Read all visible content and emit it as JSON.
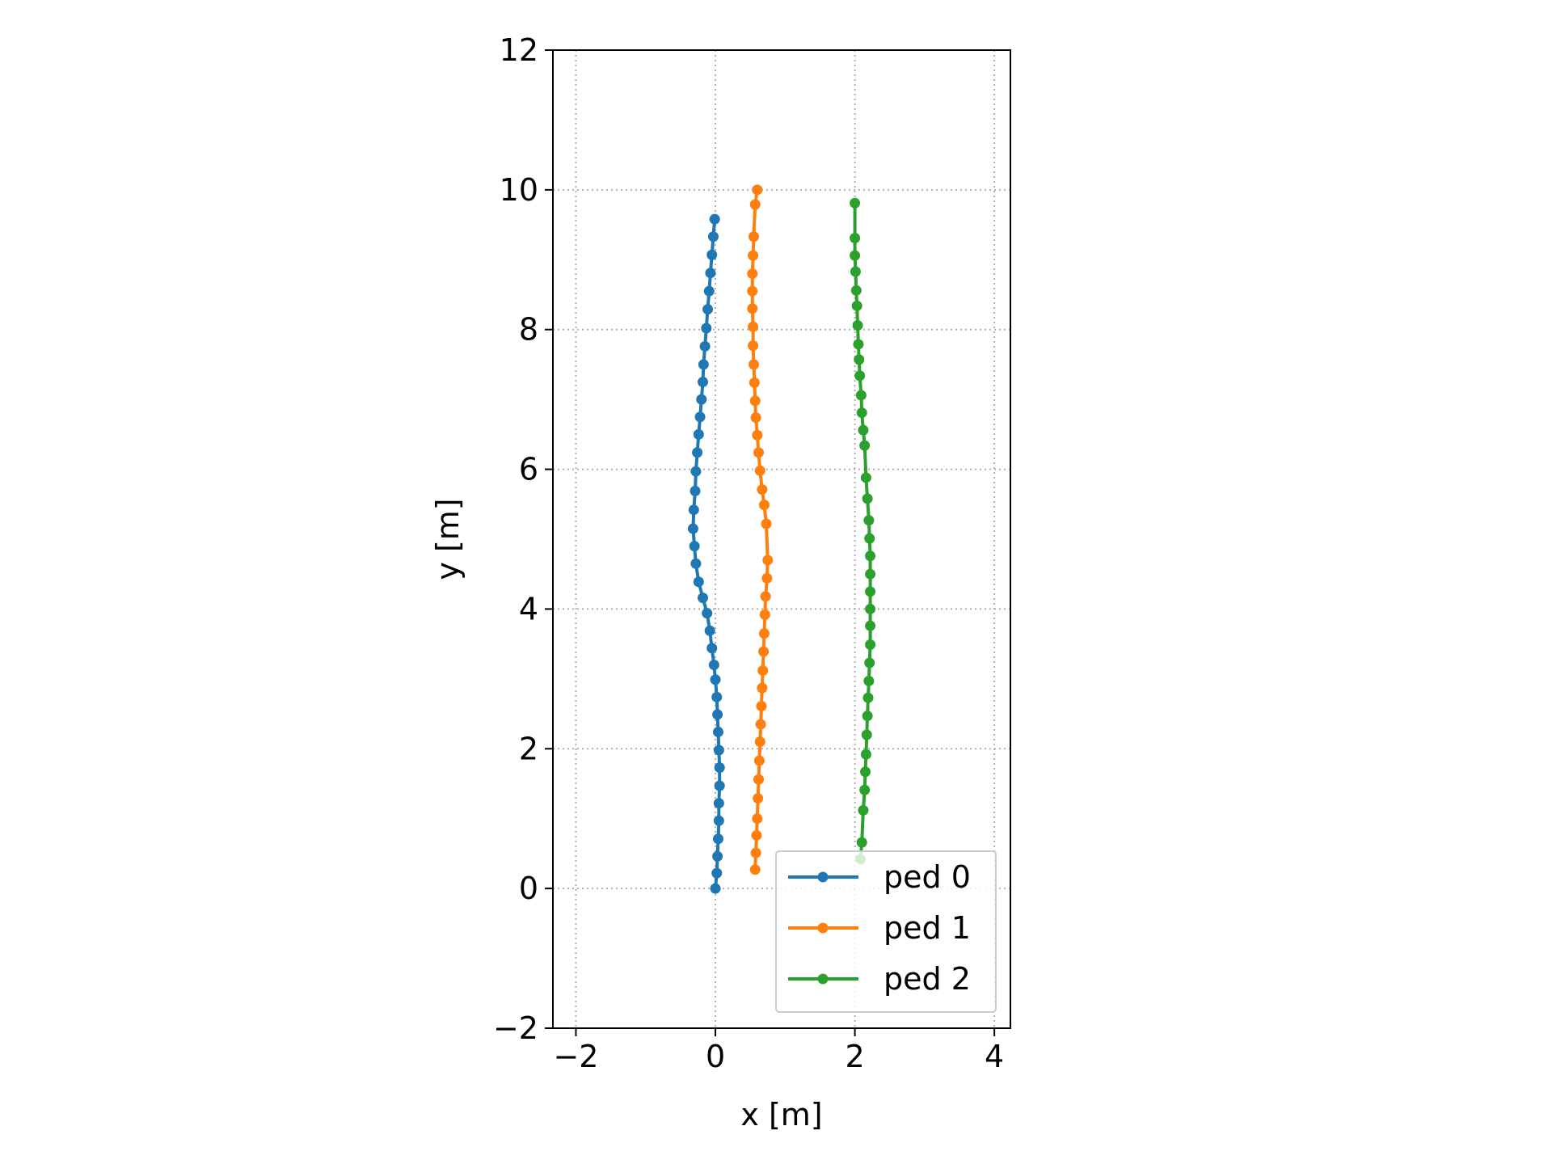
{
  "chart_data": {
    "type": "line",
    "xlabel": "x [m]",
    "ylabel": "y [m]",
    "xlim": [
      -2.33,
      4.23
    ],
    "ylim": [
      -2,
      12
    ],
    "xticks": [
      -2,
      0,
      2,
      4
    ],
    "yticks": [
      -2,
      0,
      2,
      4,
      6,
      8,
      10,
      12
    ],
    "x_tick_labels": [
      "−2",
      "0",
      "2",
      "4"
    ],
    "y_tick_labels": [
      "−2",
      "0",
      "2",
      "4",
      "6",
      "8",
      "10",
      "12"
    ],
    "grid": true,
    "legend_position": "lower-right",
    "series": [
      {
        "name": "ped 0",
        "color": "#1f77b4",
        "x": [
          0.0,
          0.02,
          0.03,
          0.04,
          0.05,
          0.05,
          0.06,
          0.06,
          0.05,
          0.04,
          0.03,
          0.02,
          0.0,
          -0.02,
          -0.05,
          -0.08,
          -0.12,
          -0.18,
          -0.24,
          -0.28,
          -0.3,
          -0.32,
          -0.31,
          -0.29,
          -0.28,
          -0.26,
          -0.24,
          -0.22,
          -0.2,
          -0.18,
          -0.17,
          -0.15,
          -0.13,
          -0.11,
          -0.09,
          -0.07,
          -0.05,
          -0.03,
          -0.01
        ],
        "y": [
          0.0,
          0.22,
          0.46,
          0.71,
          0.97,
          1.22,
          1.47,
          1.73,
          1.98,
          2.24,
          2.49,
          2.74,
          2.99,
          3.2,
          3.44,
          3.69,
          3.94,
          4.16,
          4.39,
          4.65,
          4.9,
          5.15,
          5.42,
          5.69,
          5.97,
          6.24,
          6.5,
          6.75,
          7.0,
          7.25,
          7.5,
          7.76,
          8.02,
          8.29,
          8.55,
          8.81,
          9.07,
          9.33,
          9.58
        ]
      },
      {
        "name": "ped 1",
        "color": "#ff7f0e",
        "x": [
          0.57,
          0.58,
          0.59,
          0.6,
          0.61,
          0.62,
          0.63,
          0.64,
          0.65,
          0.66,
          0.67,
          0.68,
          0.69,
          0.7,
          0.71,
          0.72,
          0.74,
          0.75,
          0.73,
          0.7,
          0.67,
          0.64,
          0.62,
          0.6,
          0.58,
          0.57,
          0.56,
          0.55,
          0.54,
          0.54,
          0.53,
          0.53,
          0.53,
          0.54,
          0.55,
          0.57,
          0.6
        ],
        "y": [
          0.27,
          0.51,
          0.76,
          1.0,
          1.29,
          1.56,
          1.83,
          2.1,
          2.35,
          2.61,
          2.87,
          3.12,
          3.39,
          3.65,
          3.92,
          4.18,
          4.44,
          4.7,
          5.22,
          5.49,
          5.71,
          5.98,
          6.24,
          6.49,
          6.74,
          6.98,
          7.24,
          7.5,
          7.77,
          8.04,
          8.3,
          8.55,
          8.8,
          9.06,
          9.33,
          9.79,
          10.0
        ]
      },
      {
        "name": "ped 2",
        "color": "#2ca02c",
        "x": [
          2.08,
          2.1,
          2.12,
          2.14,
          2.15,
          2.16,
          2.17,
          2.18,
          2.19,
          2.2,
          2.21,
          2.22,
          2.22,
          2.22,
          2.22,
          2.22,
          2.22,
          2.21,
          2.2,
          2.18,
          2.16,
          2.14,
          2.12,
          2.1,
          2.09,
          2.07,
          2.06,
          2.05,
          2.04,
          2.03,
          2.02,
          2.01,
          2.0,
          2.0,
          2.0
        ],
        "y": [
          0.42,
          0.66,
          1.12,
          1.41,
          1.67,
          1.92,
          2.2,
          2.47,
          2.73,
          2.97,
          3.23,
          3.49,
          3.76,
          4.0,
          4.25,
          4.5,
          4.76,
          5.01,
          5.27,
          5.58,
          5.88,
          6.34,
          6.56,
          6.81,
          7.06,
          7.34,
          7.57,
          7.79,
          8.06,
          8.34,
          8.56,
          8.83,
          9.06,
          9.31,
          9.81
        ]
      }
    ]
  }
}
